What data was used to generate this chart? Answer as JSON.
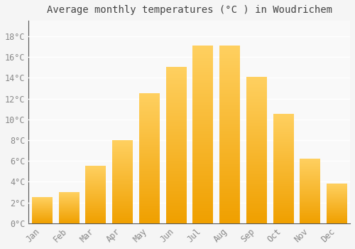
{
  "months": [
    "Jan",
    "Feb",
    "Mar",
    "Apr",
    "May",
    "Jun",
    "Jul",
    "Aug",
    "Sep",
    "Oct",
    "Nov",
    "Dec"
  ],
  "temperatures": [
    2.5,
    3.0,
    5.5,
    8.0,
    12.5,
    15.0,
    17.1,
    17.1,
    14.1,
    10.5,
    6.2,
    3.8
  ],
  "bar_color_light": "#FFD060",
  "bar_color_dark": "#F0A000",
  "title": "Average monthly temperatures (°C ) in Woudrichem",
  "yticks": [
    0,
    2,
    4,
    6,
    8,
    10,
    12,
    14,
    16,
    18
  ],
  "ylim": [
    0,
    19.5
  ],
  "background_color": "#f5f5f5",
  "plot_bg_color": "#f9f9f9",
  "grid_color": "#ffffff",
  "title_fontsize": 10,
  "tick_fontsize": 8.5,
  "bar_width": 0.75
}
